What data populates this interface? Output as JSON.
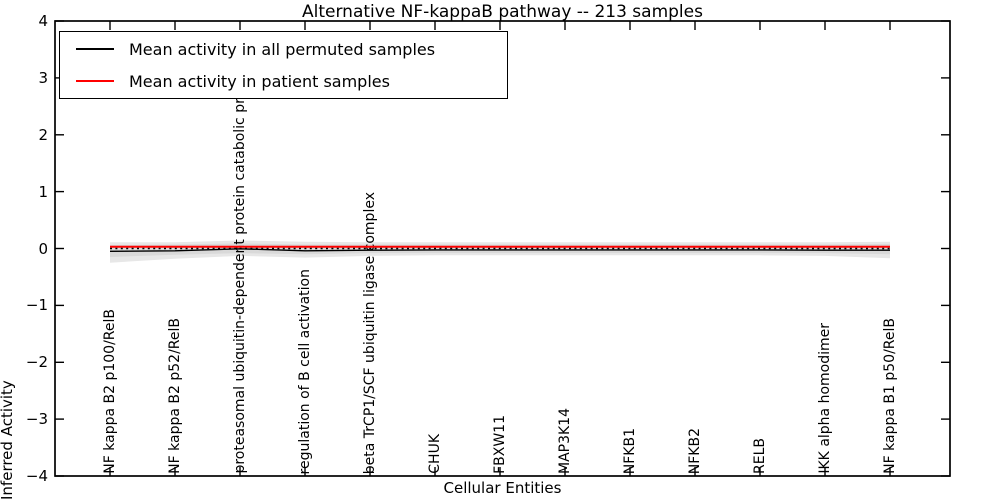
{
  "title": "Alternative NF-kappaB pathway -- 213 samples",
  "axes": {
    "x_label": "Cellular Entities",
    "y_label": "Inferred Activity",
    "y_ticks": [
      {
        "label": "4",
        "value": 4
      },
      {
        "label": "3",
        "value": 3
      },
      {
        "label": "2",
        "value": 2
      },
      {
        "label": "1",
        "value": 1
      },
      {
        "label": "0",
        "value": 0
      },
      {
        "label": "−1",
        "value": -1
      },
      {
        "label": "−2",
        "value": -2
      },
      {
        "label": "−3",
        "value": -3
      },
      {
        "label": "−4",
        "value": -4
      }
    ]
  },
  "legend": {
    "entries": [
      {
        "label": "Mean activity in all permuted samples",
        "color": "#000000"
      },
      {
        "label": "Mean activity in patient samples",
        "color": "#ff0000"
      }
    ]
  },
  "colors": {
    "band_outer": "#e7e7e7",
    "band_inner": "#d9d9d9",
    "permuted_line": "#000000",
    "patient_line": "#ff0000",
    "zero_line": "#000000",
    "frame": "#000000",
    "background": "#ffffff"
  },
  "chart_data": {
    "type": "line",
    "title": "Alternative NF-kappaB pathway -- 213 samples",
    "xlabel": "Cellular Entities",
    "ylabel": "Inferred Activity",
    "ylim": [
      -4,
      4
    ],
    "grid": false,
    "legend_position": "upper left",
    "categories": [
      "NF kappa B2 p100/RelB",
      "NF kappa B2 p52/RelB",
      "proteasomal ubiquitin-dependent protein catabolic process",
      "regulation of B cell activation",
      "beta TrCP1/SCF ubiquitin ligase complex",
      "CHUK",
      "FBXW11",
      "MAP3K14",
      "NFKB1",
      "NFKB2",
      "RELB",
      "IKK alpha homodimer",
      "NF kappa B1 p50/RelB"
    ],
    "series": [
      {
        "name": "Mean activity in all permuted samples",
        "color": "#000000",
        "style": "solid",
        "values": [
          -0.05,
          -0.04,
          -0.005,
          -0.04,
          -0.03,
          -0.025,
          -0.025,
          -0.025,
          -0.025,
          -0.025,
          -0.025,
          -0.03,
          -0.03
        ]
      },
      {
        "name": "Mean activity in patient samples",
        "color": "#ff0000",
        "style": "solid",
        "values": [
          0.03,
          0.03,
          0.03,
          0.03,
          0.03,
          0.03,
          0.03,
          0.03,
          0.03,
          0.03,
          0.03,
          0.03,
          0.03
        ]
      }
    ],
    "reference_line": {
      "value": 0,
      "style": "dotted",
      "color": "#000000"
    },
    "band_outer": {
      "upper": [
        0.11,
        0.11,
        0.14,
        0.12,
        0.11,
        0.11,
        0.11,
        0.11,
        0.11,
        0.11,
        0.11,
        0.11,
        0.12
      ],
      "lower": [
        -0.25,
        -0.18,
        -0.13,
        -0.16,
        -0.13,
        -0.12,
        -0.12,
        -0.12,
        -0.12,
        -0.12,
        -0.12,
        -0.13,
        -0.17
      ]
    },
    "band_inner": {
      "upper": [
        0.06,
        0.07,
        0.09,
        0.07,
        0.07,
        0.07,
        0.07,
        0.07,
        0.07,
        0.07,
        0.07,
        0.07,
        0.08
      ],
      "lower": [
        -0.15,
        -0.11,
        -0.08,
        -0.1,
        -0.08,
        -0.08,
        -0.08,
        -0.08,
        -0.08,
        -0.08,
        -0.08,
        -0.08,
        -0.1
      ]
    }
  }
}
